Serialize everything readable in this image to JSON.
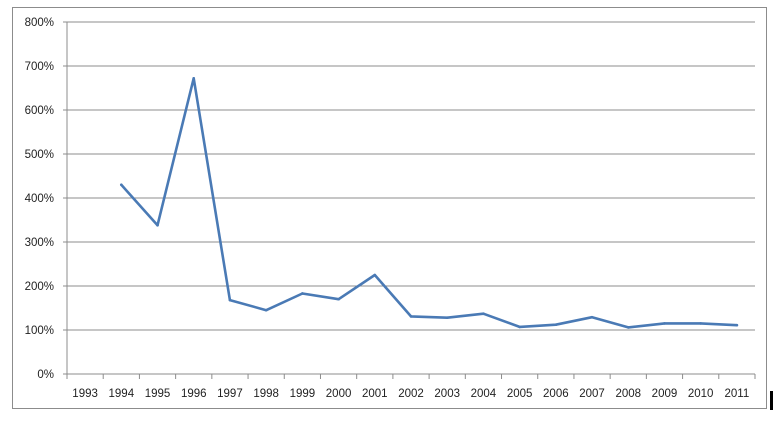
{
  "chart_data": {
    "type": "line",
    "title": "",
    "xlabel": "",
    "ylabel": "",
    "categories": [
      "1993",
      "1994",
      "1995",
      "1996",
      "1997",
      "1998",
      "1999",
      "2000",
      "2001",
      "2002",
      "2003",
      "2004",
      "2005",
      "2006",
      "2007",
      "2008",
      "2009",
      "2010",
      "2011"
    ],
    "series": [
      {
        "color": "#4a7ab5",
        "values": [
          null,
          430,
          338,
          672,
          168,
          145,
          183,
          170,
          225,
          131,
          128,
          137,
          107,
          112,
          129,
          106,
          115,
          115,
          111
        ]
      }
    ],
    "ylim": [
      0,
      800
    ],
    "yticks": [
      0,
      100,
      200,
      300,
      400,
      500,
      600,
      700,
      800
    ],
    "ytick_labels": [
      "0%",
      "100%",
      "200%",
      "300%",
      "400%",
      "500%",
      "600%",
      "700%",
      "800%"
    ],
    "grid": "horizontal",
    "legend": "none"
  }
}
